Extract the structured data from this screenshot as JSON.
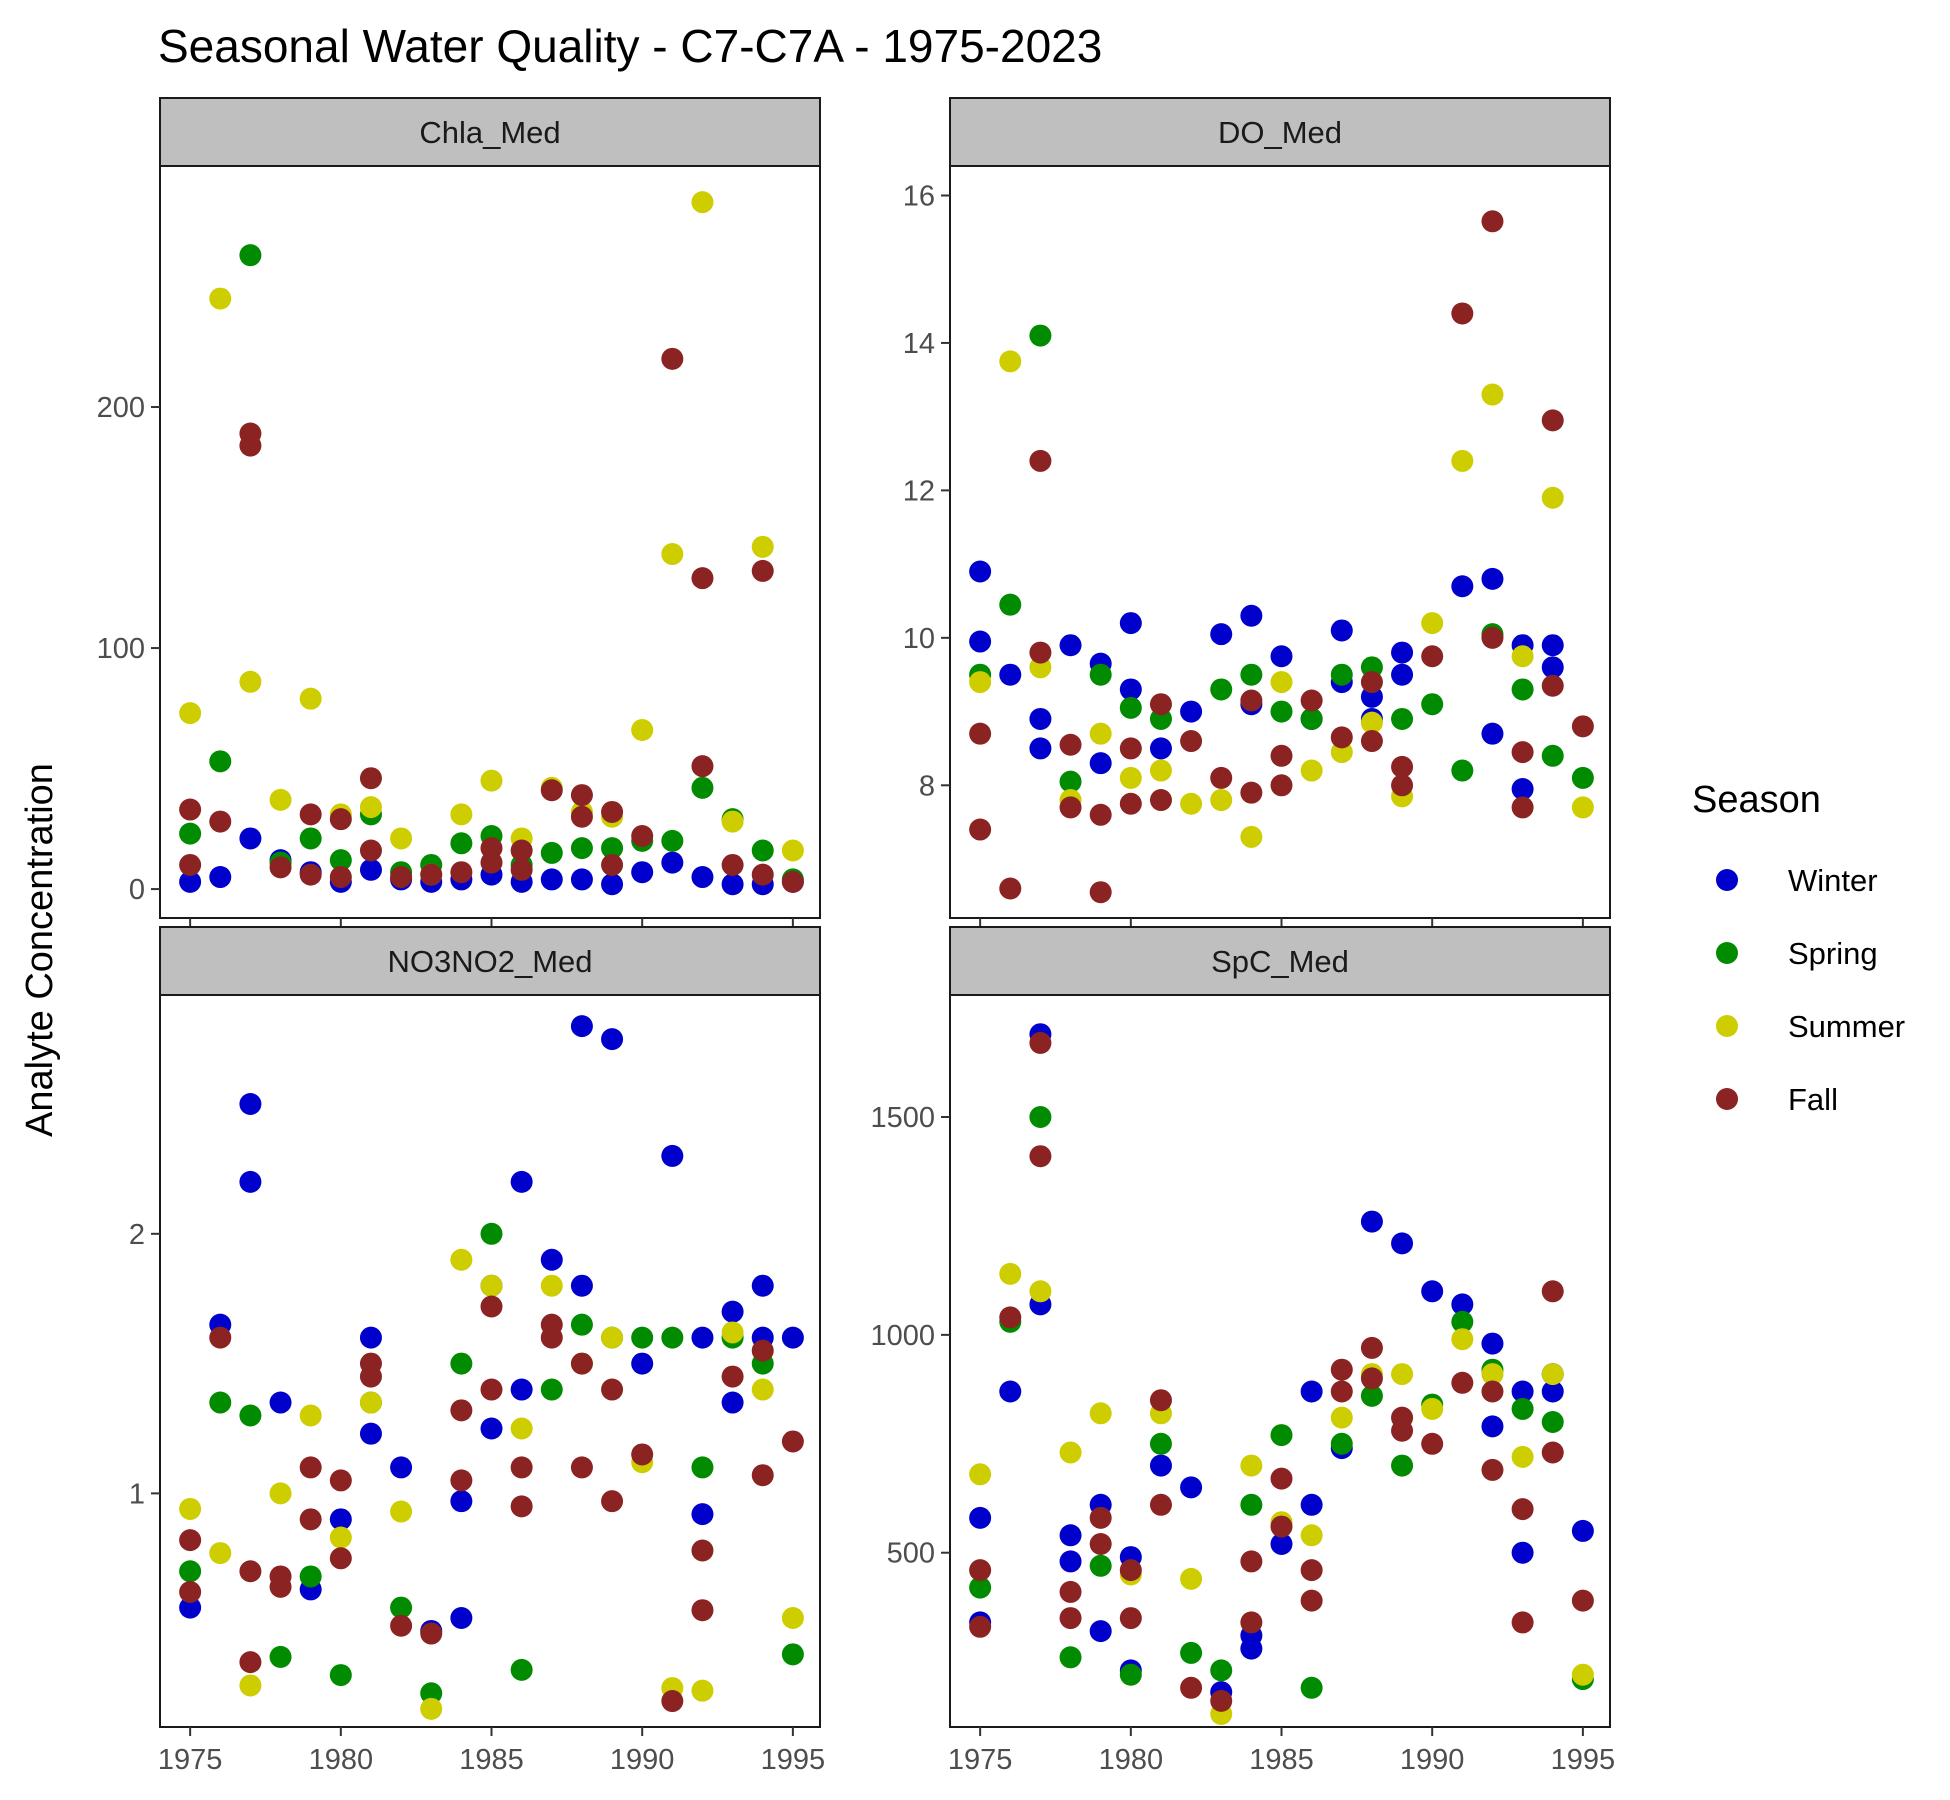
{
  "title": "Seasonal Water Quality - C7-C7A - 1975-2023",
  "ylabel": "Analyte Concentration",
  "legend": {
    "title": "Season",
    "entries": [
      {
        "label": "Winter",
        "color": "#0000CD"
      },
      {
        "label": "Spring",
        "color": "#008B00"
      },
      {
        "label": "Summer",
        "color": "#CDCD00"
      },
      {
        "label": "Fall",
        "color": "#8B2323"
      }
    ],
    "placement": "right"
  },
  "chart_data": [
    {
      "type": "scatter",
      "panel": "Chla_Med",
      "xlim": [
        1974,
        1995.9
      ],
      "ylim": [
        -12,
        300
      ],
      "xticks": [
        1975,
        1980,
        1985,
        1990,
        1995
      ],
      "yticks": [
        0,
        100,
        200
      ],
      "x_axis_labels": false,
      "grid": false,
      "series": [
        {
          "name": "Winter",
          "x": [
            1975,
            1976,
            1977,
            1978,
            1979,
            1980,
            1981,
            1982,
            1983,
            1984,
            1985,
            1986,
            1987,
            1988,
            1989,
            1990,
            1991,
            1992,
            1993,
            1994,
            1995
          ],
          "y": [
            3,
            5,
            21,
            12,
            7,
            3,
            8,
            4,
            3,
            4,
            6,
            3,
            4,
            4,
            2,
            7,
            11,
            5,
            2,
            2,
            3
          ]
        },
        {
          "name": "Spring",
          "x": [
            1975,
            1976,
            1977,
            1978,
            1979,
            1980,
            1981,
            1982,
            1983,
            1984,
            1985,
            1986,
            1987,
            1988,
            1989,
            1990,
            1991,
            1992,
            1993,
            1994,
            1995
          ],
          "y": [
            23,
            53,
            263,
            11,
            21,
            12,
            31,
            7,
            10,
            19,
            22,
            10,
            15,
            17,
            17,
            20,
            20,
            42,
            29,
            16,
            4
          ]
        },
        {
          "name": "Summer",
          "x": [
            1975,
            1976,
            1977,
            1978,
            1979,
            1980,
            1981,
            1982,
            1983,
            1984,
            1985,
            1986,
            1987,
            1988,
            1989,
            1990,
            1991,
            1992,
            1993,
            1994,
            1995
          ],
          "y": [
            73,
            245,
            86,
            37,
            79,
            31,
            34,
            21,
            6,
            31,
            45,
            21,
            42,
            32,
            30,
            66,
            139,
            285,
            28,
            142,
            16
          ]
        },
        {
          "name": "Fall",
          "x": [
            1975,
            1975,
            1976,
            1977,
            1977,
            1978,
            1979,
            1979,
            1980,
            1980,
            1981,
            1981,
            1982,
            1983,
            1984,
            1985,
            1985,
            1986,
            1986,
            1987,
            1988,
            1988,
            1989,
            1989,
            1990,
            1991,
            1992,
            1992,
            1993,
            1994,
            1994,
            1995
          ],
          "y": [
            10,
            33,
            28,
            189,
            184,
            9,
            6,
            31,
            5,
            29,
            46,
            16,
            5,
            6,
            7,
            17,
            11,
            16,
            8,
            41,
            39,
            30,
            10,
            32,
            22,
            220,
            129,
            51,
            10,
            132,
            6,
            3
          ]
        }
      ]
    },
    {
      "type": "scatter",
      "panel": "DO_Med",
      "xlim": [
        1974,
        1995.9
      ],
      "ylim": [
        6.2,
        16.4
      ],
      "xticks": [
        1975,
        1980,
        1985,
        1990,
        1995
      ],
      "yticks": [
        8,
        10,
        12,
        14,
        16
      ],
      "x_axis_labels": false,
      "grid": false,
      "series": [
        {
          "name": "Winter",
          "x": [
            1975,
            1975,
            1976,
            1977,
            1977,
            1978,
            1979,
            1979,
            1980,
            1980,
            1981,
            1982,
            1983,
            1984,
            1984,
            1985,
            1986,
            1987,
            1987,
            1988,
            1988,
            1989,
            1989,
            1991,
            1992,
            1992,
            1993,
            1993,
            1994,
            1994
          ],
          "y": [
            10.9,
            9.95,
            9.5,
            8.9,
            8.5,
            9.9,
            9.65,
            8.3,
            10.2,
            9.3,
            8.5,
            9.0,
            10.05,
            10.3,
            9.1,
            9.75,
            8.9,
            10.1,
            9.4,
            9.2,
            8.9,
            9.8,
            9.5,
            10.7,
            10.8,
            8.7,
            9.9,
            7.95,
            9.9,
            9.6
          ]
        },
        {
          "name": "Spring",
          "x": [
            1975,
            1976,
            1977,
            1978,
            1979,
            1980,
            1981,
            1983,
            1984,
            1985,
            1986,
            1987,
            1988,
            1989,
            1990,
            1991,
            1992,
            1993,
            1994,
            1995
          ],
          "y": [
            9.5,
            10.45,
            14.1,
            8.05,
            9.5,
            9.05,
            8.9,
            9.3,
            9.5,
            9.0,
            8.9,
            9.5,
            9.6,
            8.9,
            9.1,
            8.2,
            10.05,
            9.3,
            8.4,
            8.1
          ]
        },
        {
          "name": "Summer",
          "x": [
            1975,
            1976,
            1977,
            1978,
            1979,
            1980,
            1981,
            1982,
            1983,
            1984,
            1985,
            1986,
            1987,
            1988,
            1989,
            1990,
            1991,
            1992,
            1993,
            1994,
            1995
          ],
          "y": [
            9.4,
            13.75,
            9.6,
            7.8,
            8.7,
            8.1,
            8.2,
            7.75,
            7.8,
            7.3,
            9.4,
            8.2,
            8.45,
            8.85,
            7.85,
            10.2,
            12.4,
            13.3,
            9.75,
            11.9,
            7.7
          ]
        },
        {
          "name": "Fall",
          "x": [
            1975,
            1975,
            1976,
            1977,
            1977,
            1978,
            1978,
            1979,
            1979,
            1980,
            1980,
            1981,
            1981,
            1982,
            1983,
            1984,
            1984,
            1985,
            1985,
            1986,
            1987,
            1988,
            1988,
            1989,
            1989,
            1990,
            1991,
            1992,
            1992,
            1993,
            1993,
            1994,
            1994,
            1995
          ],
          "y": [
            8.7,
            7.4,
            6.6,
            12.4,
            9.8,
            8.55,
            7.7,
            7.6,
            6.55,
            8.5,
            7.75,
            9.1,
            7.8,
            8.6,
            8.1,
            9.15,
            7.9,
            8.4,
            8.0,
            9.15,
            8.65,
            9.4,
            8.6,
            8.25,
            8.0,
            9.75,
            14.4,
            15.65,
            10.0,
            8.45,
            7.7,
            12.95,
            9.35,
            8.8
          ]
        }
      ]
    },
    {
      "type": "scatter",
      "panel": "NO3NO2_Med",
      "xlim": [
        1974,
        1995.9
      ],
      "ylim": [
        0.1,
        2.92
      ],
      "xticks": [
        1975,
        1980,
        1985,
        1990,
        1995
      ],
      "yticks": [
        1,
        2
      ],
      "x_axis_labels": true,
      "grid": false,
      "series": [
        {
          "name": "Winter",
          "x": [
            1975,
            1976,
            1977,
            1977,
            1978,
            1979,
            1980,
            1981,
            1981,
            1982,
            1983,
            1984,
            1984,
            1985,
            1985,
            1986,
            1986,
            1987,
            1988,
            1988,
            1989,
            1990,
            1991,
            1992,
            1992,
            1993,
            1993,
            1994,
            1994,
            1995
          ],
          "y": [
            0.56,
            1.65,
            2.5,
            2.2,
            1.35,
            0.63,
            0.9,
            1.6,
            1.23,
            1.1,
            0.47,
            0.97,
            0.52,
            1.8,
            1.25,
            2.2,
            1.4,
            1.9,
            2.8,
            1.8,
            2.75,
            1.5,
            2.3,
            1.6,
            0.92,
            1.7,
            1.35,
            1.8,
            1.6,
            1.6
          ]
        },
        {
          "name": "Spring",
          "x": [
            1975,
            1976,
            1977,
            1978,
            1979,
            1980,
            1981,
            1982,
            1983,
            1984,
            1985,
            1986,
            1987,
            1988,
            1989,
            1990,
            1991,
            1992,
            1993,
            1994,
            1995
          ],
          "y": [
            0.7,
            1.35,
            1.3,
            0.37,
            0.68,
            0.3,
            1.35,
            0.56,
            0.23,
            1.5,
            2.0,
            0.32,
            1.4,
            1.65,
            1.6,
            1.6,
            1.6,
            1.1,
            1.6,
            1.5,
            0.38
          ]
        },
        {
          "name": "Summer",
          "x": [
            1975,
            1976,
            1977,
            1978,
            1979,
            1980,
            1981,
            1982,
            1983,
            1984,
            1985,
            1986,
            1987,
            1988,
            1989,
            1990,
            1991,
            1992,
            1993,
            1994,
            1995
          ],
          "y": [
            0.94,
            0.77,
            0.26,
            1.0,
            1.3,
            0.83,
            1.35,
            0.93,
            0.17,
            1.9,
            1.8,
            1.25,
            1.8,
            1.5,
            1.6,
            1.12,
            0.25,
            0.24,
            1.62,
            1.4,
            0.52
          ]
        },
        {
          "name": "Fall",
          "x": [
            1975,
            1975,
            1976,
            1977,
            1977,
            1978,
            1978,
            1979,
            1979,
            1980,
            1980,
            1981,
            1981,
            1982,
            1983,
            1984,
            1984,
            1985,
            1985,
            1986,
            1986,
            1987,
            1987,
            1988,
            1988,
            1989,
            1989,
            1990,
            1991,
            1992,
            1992,
            1993,
            1994,
            1994,
            1995
          ],
          "y": [
            0.82,
            0.62,
            1.6,
            0.7,
            0.35,
            0.68,
            0.64,
            1.1,
            0.9,
            1.05,
            0.75,
            1.5,
            1.45,
            0.49,
            0.46,
            1.32,
            1.05,
            1.72,
            1.4,
            1.1,
            0.95,
            1.65,
            1.6,
            1.5,
            1.1,
            1.4,
            0.97,
            1.15,
            0.2,
            0.78,
            0.55,
            1.45,
            1.55,
            1.07,
            1.2
          ]
        }
      ]
    },
    {
      "type": "scatter",
      "panel": "SpC_Med",
      "xlim": [
        1974,
        1995.9
      ],
      "ylim": [
        100,
        1780
      ],
      "xticks": [
        1975,
        1980,
        1985,
        1990,
        1995
      ],
      "yticks": [
        500,
        1000,
        1500
      ],
      "x_axis_labels": true,
      "grid": false,
      "series": [
        {
          "name": "Winter",
          "x": [
            1975,
            1975,
            1976,
            1977,
            1977,
            1978,
            1978,
            1979,
            1979,
            1980,
            1980,
            1981,
            1982,
            1983,
            1984,
            1984,
            1985,
            1986,
            1986,
            1987,
            1988,
            1989,
            1990,
            1991,
            1992,
            1992,
            1993,
            1993,
            1994,
            1994,
            1995
          ],
          "y": [
            580,
            340,
            870,
            1690,
            1070,
            540,
            480,
            610,
            320,
            490,
            230,
            700,
            650,
            180,
            280,
            310,
            520,
            610,
            870,
            740,
            1260,
            1210,
            1100,
            1070,
            980,
            790,
            870,
            500,
            910,
            870,
            550
          ]
        },
        {
          "name": "Spring",
          "x": [
            1975,
            1976,
            1977,
            1978,
            1979,
            1980,
            1981,
            1982,
            1983,
            1984,
            1985,
            1986,
            1987,
            1988,
            1989,
            1990,
            1991,
            1992,
            1993,
            1994,
            1995
          ],
          "y": [
            420,
            1030,
            1500,
            260,
            470,
            220,
            750,
            270,
            230,
            610,
            770,
            190,
            750,
            860,
            700,
            840,
            1030,
            920,
            830,
            800,
            210
          ]
        },
        {
          "name": "Summer",
          "x": [
            1975,
            1976,
            1977,
            1978,
            1979,
            1980,
            1981,
            1982,
            1983,
            1984,
            1985,
            1986,
            1987,
            1988,
            1989,
            1990,
            1991,
            1992,
            1993,
            1994,
            1995
          ],
          "y": [
            680,
            1140,
            1100,
            730,
            820,
            450,
            820,
            440,
            130,
            700,
            570,
            540,
            810,
            910,
            910,
            830,
            990,
            910,
            720,
            910,
            220
          ]
        },
        {
          "name": "Fall",
          "x": [
            1975,
            1975,
            1976,
            1977,
            1977,
            1978,
            1978,
            1979,
            1979,
            1980,
            1980,
            1981,
            1981,
            1982,
            1983,
            1984,
            1984,
            1985,
            1985,
            1986,
            1986,
            1987,
            1987,
            1988,
            1988,
            1989,
            1989,
            1990,
            1991,
            1992,
            1992,
            1993,
            1993,
            1994,
            1994,
            1995
          ],
          "y": [
            460,
            330,
            1040,
            1670,
            1410,
            410,
            350,
            580,
            520,
            460,
            350,
            850,
            610,
            190,
            160,
            480,
            340,
            670,
            560,
            460,
            390,
            920,
            870,
            970,
            900,
            810,
            780,
            750,
            890,
            870,
            690,
            600,
            340,
            1100,
            730,
            390
          ]
        }
      ]
    }
  ]
}
